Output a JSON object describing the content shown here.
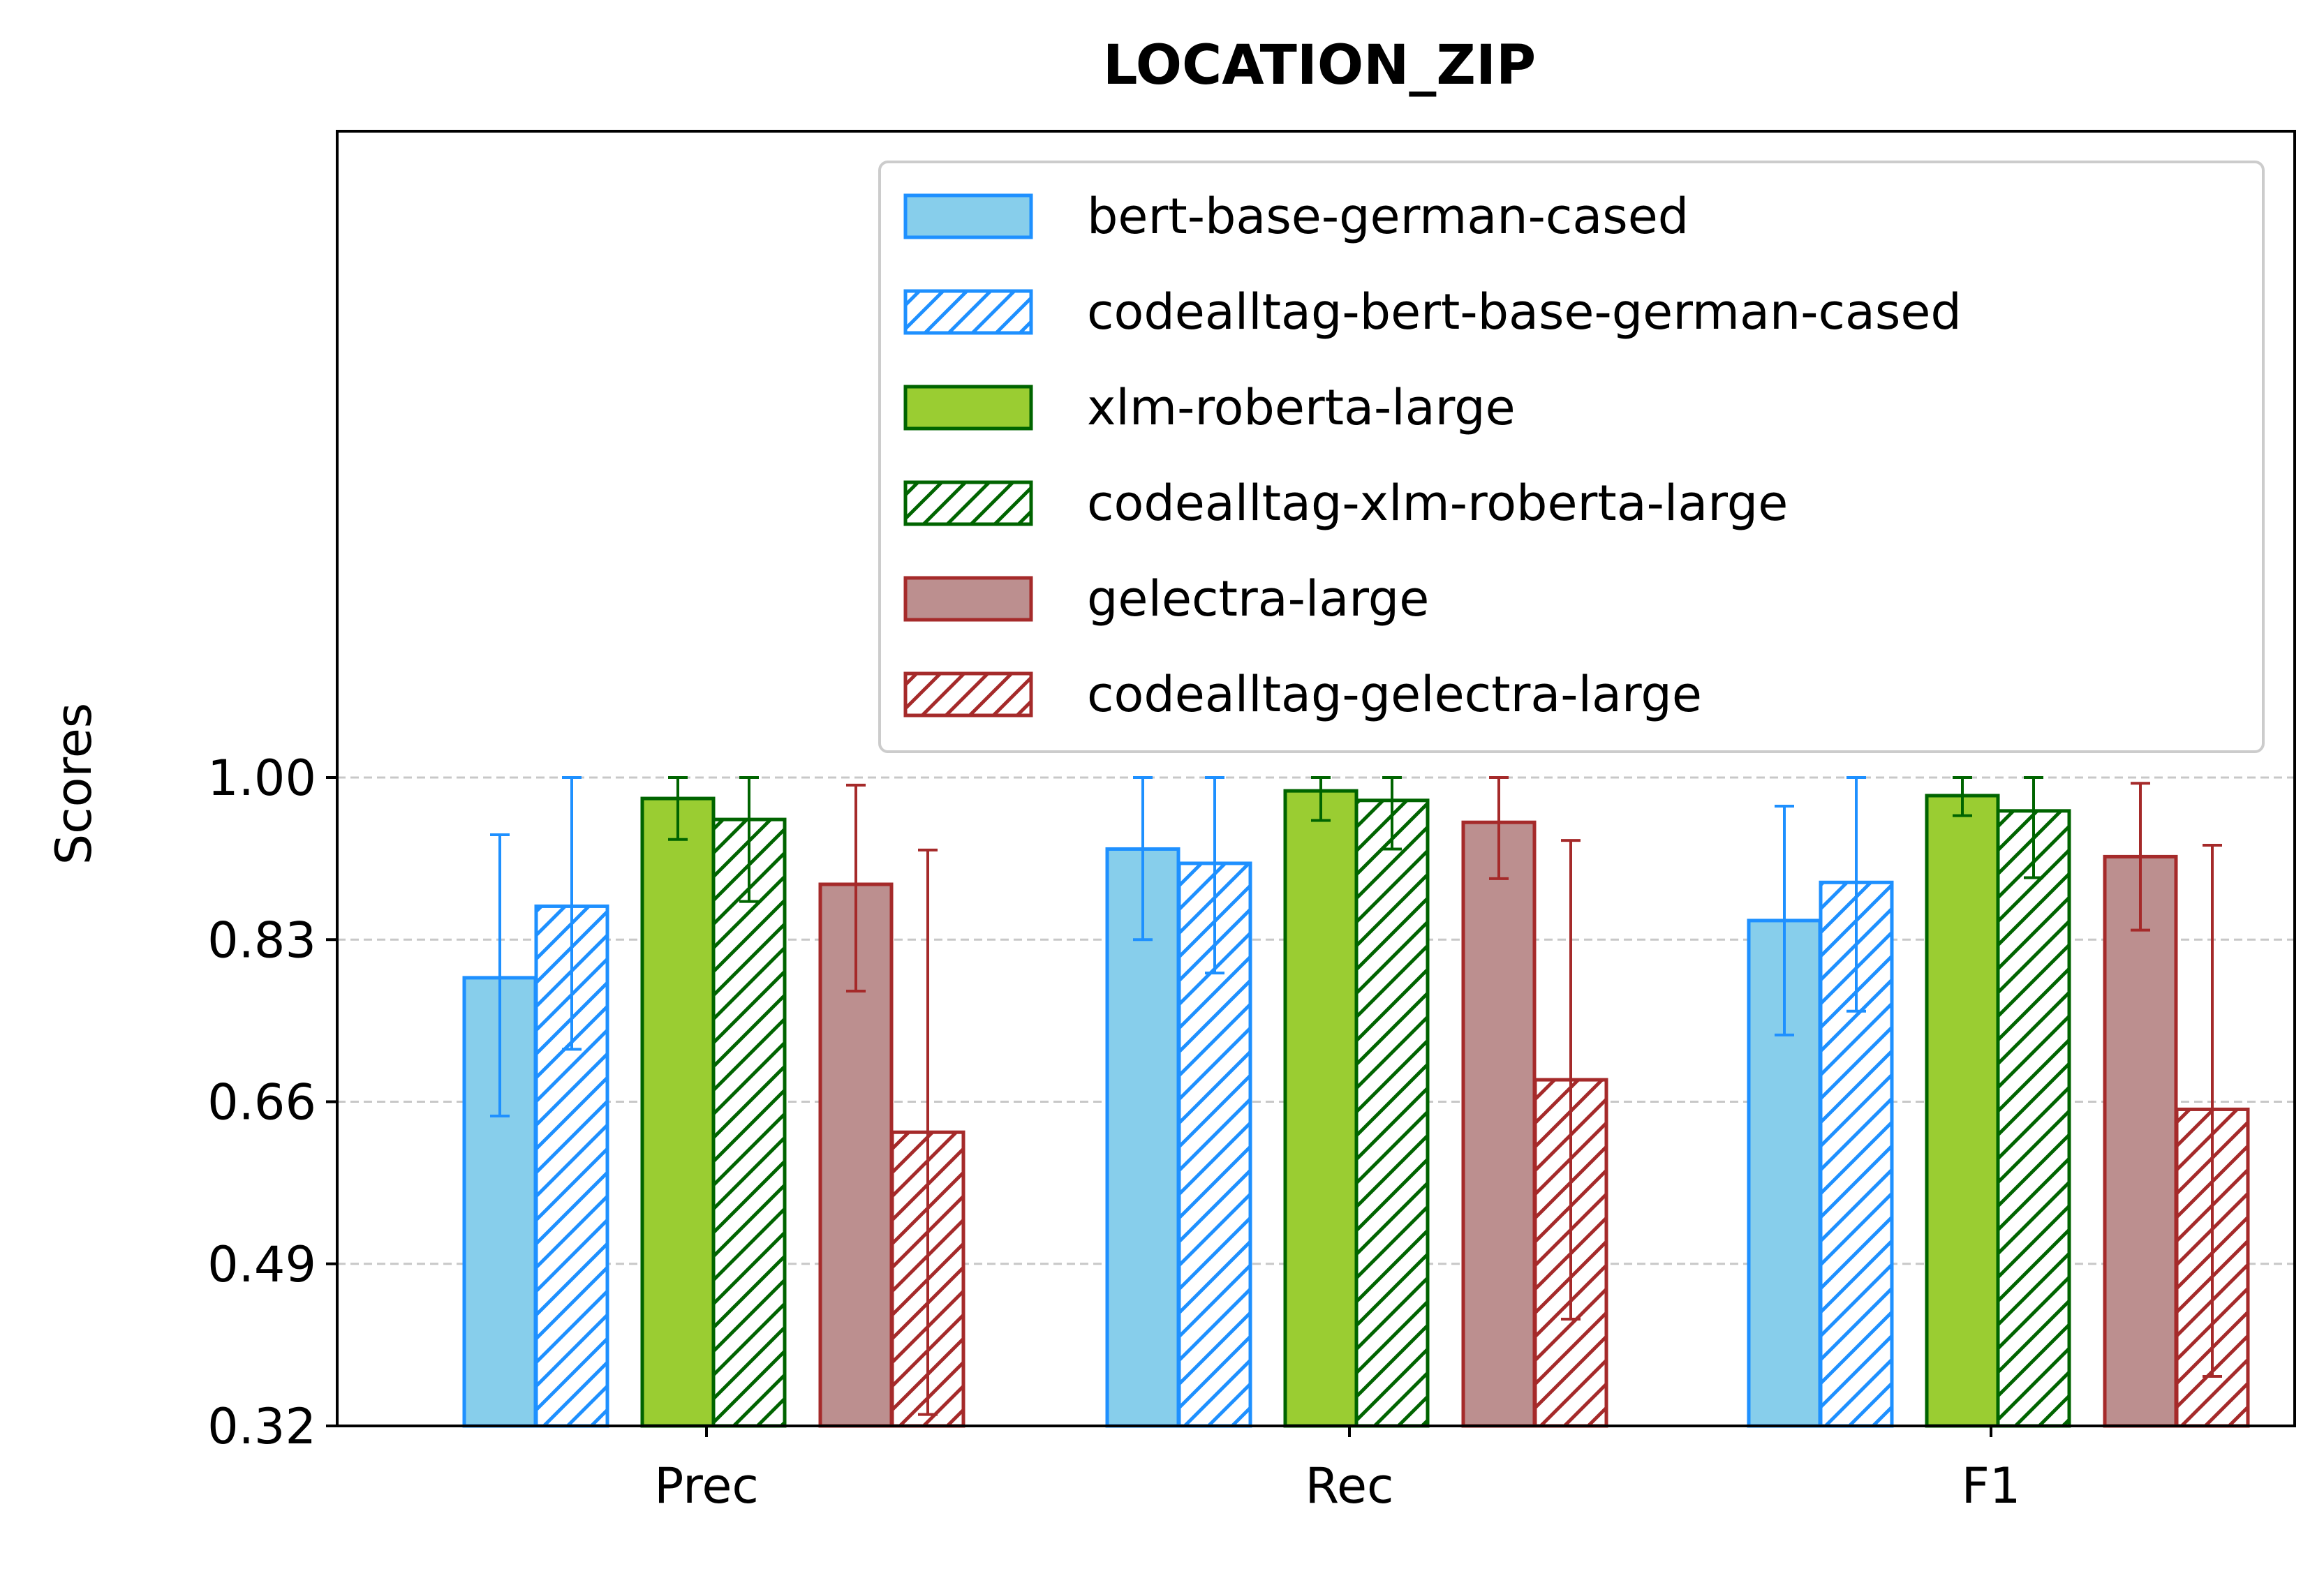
{
  "chart_data": {
    "type": "bar",
    "title": "LOCATION_ZIP",
    "xlabel": "",
    "ylabel": "Scores",
    "categories": [
      "Prec",
      "Rec",
      "F1"
    ],
    "ylim": [
      0.32,
      1.0
    ],
    "yticks": [
      "0.32",
      "0.49",
      "0.66",
      "0.83",
      "1.00"
    ],
    "grid": "horizontal dashed",
    "legend_position": "upper-right",
    "series": [
      {
        "name": "bert-base-german-cased",
        "values": [
          0.79,
          0.925,
          0.85
        ],
        "err_low": [
          0.645,
          0.83,
          0.73
        ],
        "err_high": [
          0.94,
          1.0,
          0.97
        ],
        "fill": "#87ceeb",
        "edge": "#1e90ff",
        "hatch": false
      },
      {
        "name": "codealltag-bert-base-german-cased",
        "values": [
          0.865,
          0.91,
          0.89
        ],
        "err_low": [
          0.715,
          0.795,
          0.755
        ],
        "err_high": [
          1.0,
          1.0,
          1.0
        ],
        "fill": "#ffffff",
        "edge": "#1e90ff",
        "hatch": true
      },
      {
        "name": "xlm-roberta-large",
        "values": [
          0.978,
          0.986,
          0.981
        ],
        "err_low": [
          0.935,
          0.955,
          0.96
        ],
        "err_high": [
          1.0,
          1.0,
          1.0
        ],
        "fill": "#9acd32",
        "edge": "#006400",
        "hatch": false
      },
      {
        "name": "codealltag-xlm-roberta-large",
        "values": [
          0.956,
          0.976,
          0.965
        ],
        "err_low": [
          0.87,
          0.925,
          0.895
        ],
        "err_high": [
          1.0,
          1.0,
          1.0
        ],
        "fill": "#ffffff",
        "edge": "#006400",
        "hatch": true
      },
      {
        "name": "gelectra-large",
        "values": [
          0.888,
          0.953,
          0.917
        ],
        "err_low": [
          0.776,
          0.894,
          0.84
        ],
        "err_high": [
          0.992,
          1.0,
          0.994
        ],
        "fill": "#bc8f8f",
        "edge": "#a52a2a",
        "hatch": false
      },
      {
        "name": "codealltag-gelectra-large",
        "values": [
          0.628,
          0.683,
          0.652
        ],
        "err_low": [
          0.332,
          0.432,
          0.372
        ],
        "err_high": [
          0.924,
          0.934,
          0.929
        ],
        "fill": "#ffffff",
        "edge": "#a52a2a",
        "hatch": true
      }
    ]
  }
}
